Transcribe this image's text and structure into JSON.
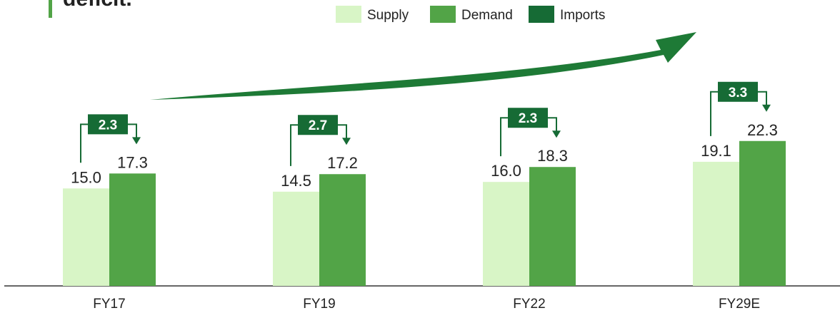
{
  "chart_data": {
    "type": "bar",
    "title": "deficit.",
    "categories": [
      "FY17",
      "FY19",
      "FY22",
      "FY29E"
    ],
    "series": [
      {
        "name": "Supply",
        "color": "#d8f5c6",
        "values": [
          15.0,
          14.5,
          16.0,
          19.1
        ],
        "value_labels": [
          "15.0",
          "14.5",
          "16.0",
          "19.1"
        ]
      },
      {
        "name": "Demand",
        "color": "#52a447",
        "values": [
          17.3,
          17.2,
          18.3,
          22.3
        ]
      },
      {
        "name": "Imports",
        "color": "#166b35",
        "values": [
          2.3,
          2.7,
          2.3,
          3.3
        ]
      }
    ],
    "ylim": [
      0,
      44
    ]
  }
}
